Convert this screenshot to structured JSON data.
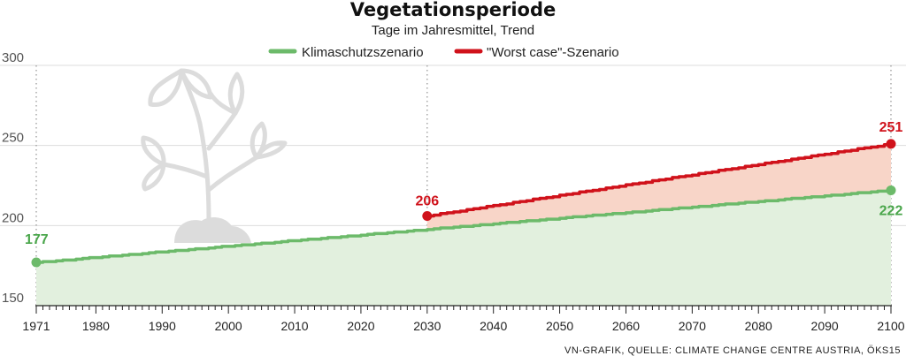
{
  "chart_data": {
    "type": "area",
    "title": "Vegetationsperiode",
    "subtitle": "Tage im Jahresmittel, Trend",
    "xlabel": "",
    "ylabel": "",
    "xlim": [
      1971,
      2100
    ],
    "ylim": [
      150,
      300
    ],
    "y_ticks": [
      150,
      200,
      250,
      300
    ],
    "x_ticks": [
      1971,
      1980,
      1990,
      2000,
      2010,
      2020,
      2030,
      2040,
      2050,
      2060,
      2070,
      2080,
      2090,
      2100
    ],
    "series": [
      {
        "name": "Klimaschutzszenario",
        "color": "#6cba6a",
        "fill": "#e2f0de",
        "start": {
          "x": 1971,
          "y": 177
        },
        "end": {
          "x": 2100,
          "y": 222
        },
        "start_label": "177",
        "end_label": "222",
        "label_color": "#4aa64b"
      },
      {
        "name": "\"Worst case\"-Szenario",
        "color": "#d0121b",
        "fill": "#f8d5c8",
        "start": {
          "x": 2030,
          "y": 206
        },
        "end": {
          "x": 2100,
          "y": 251
        },
        "start_label": "206",
        "end_label": "251",
        "label_color": "#d0121b"
      }
    ],
    "reference_lines": [
      1971,
      2030,
      2100
    ],
    "source": "VN-GRAFIK, QUELLE: CLIMATE CHANGE CENTRE AUSTRIA, ÖKS15"
  },
  "decoration": {
    "icon": "plant-icon",
    "color": "#dcdcdc"
  }
}
